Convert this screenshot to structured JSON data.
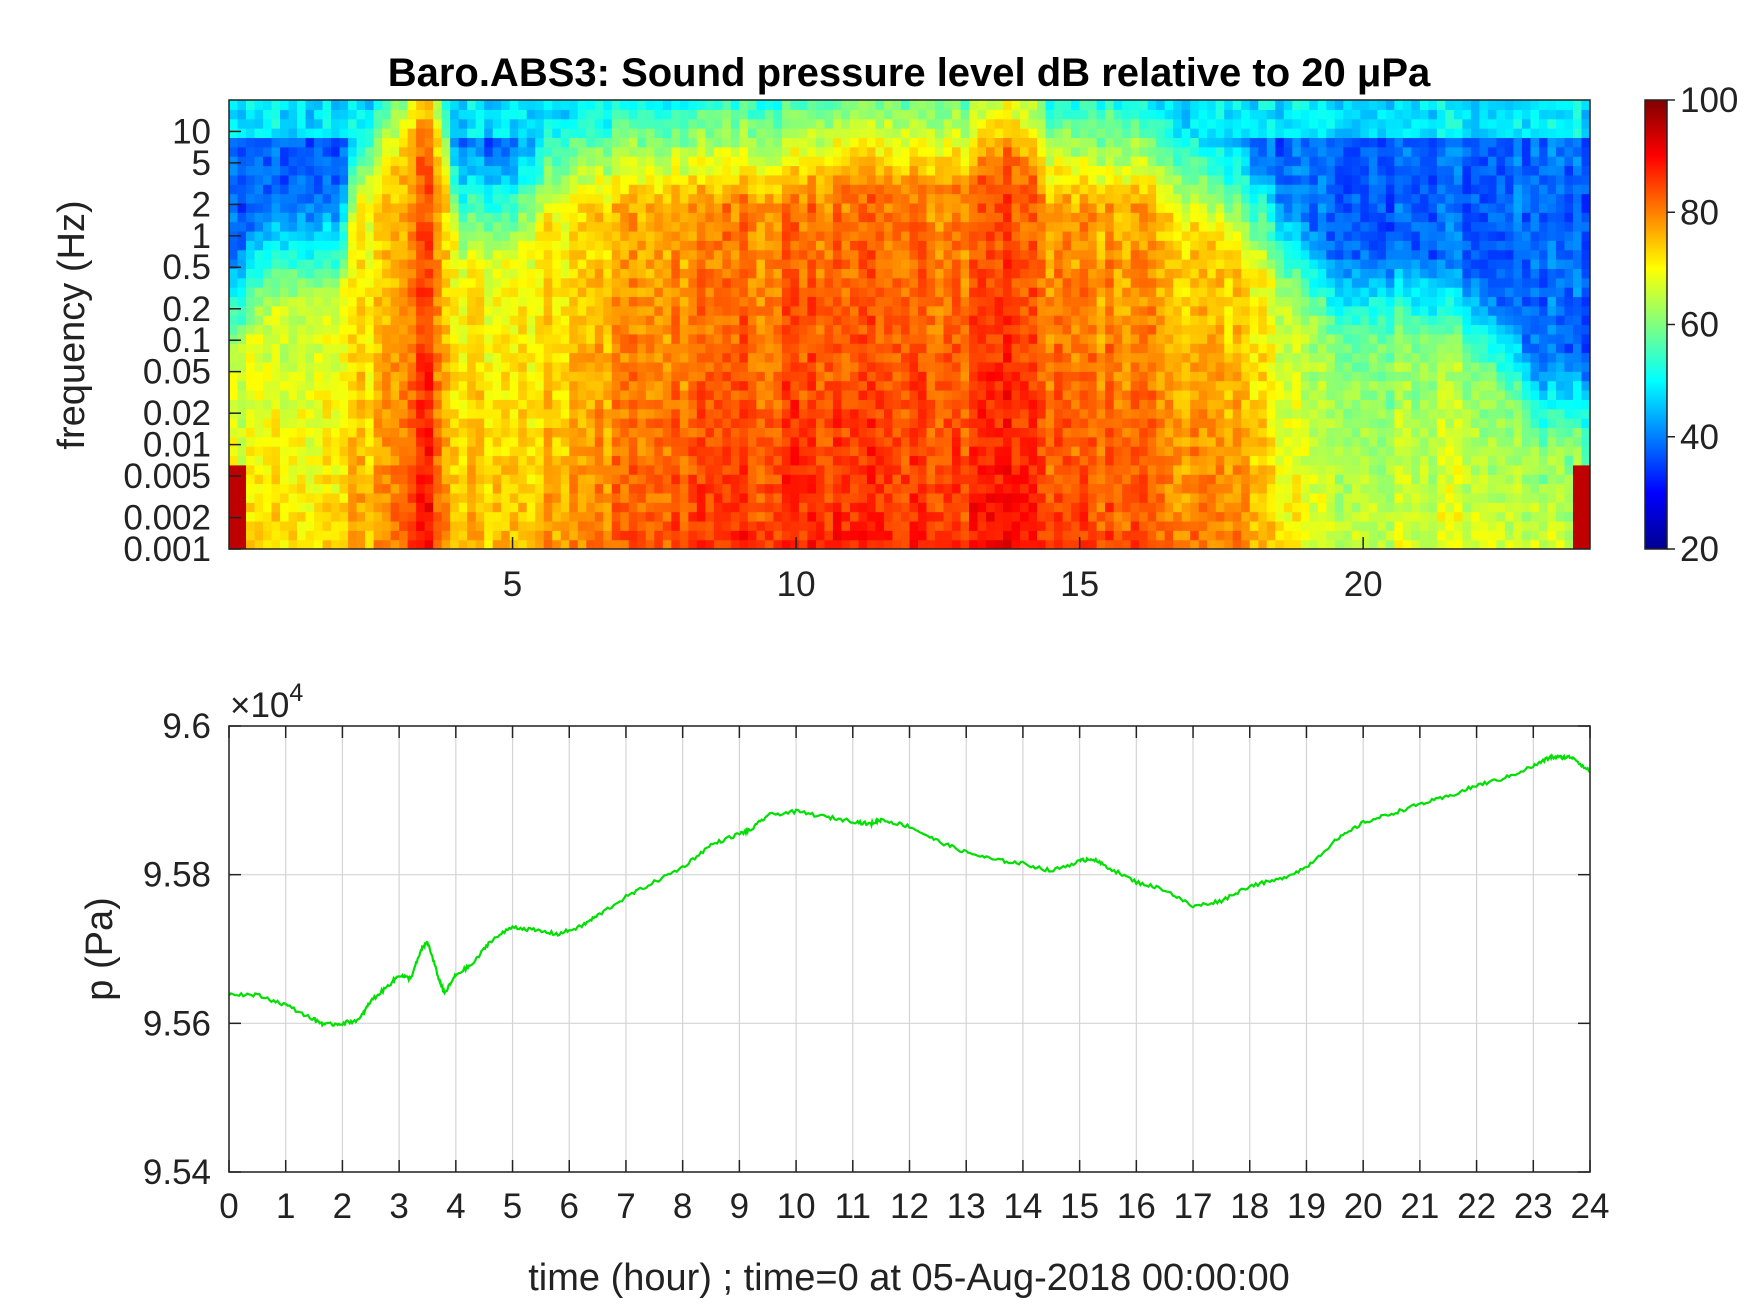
{
  "chart_data": [
    {
      "type": "heatmap",
      "title": "Baro.ABS3: Sound pressure level dB relative to 20 μPa",
      "ylabel": "frequency (Hz)",
      "xlabel": "",
      "x_ticks": [
        5,
        10,
        15,
        20
      ],
      "x_range": [
        0,
        24
      ],
      "y_scale": "log",
      "y_range": [
        0.001,
        20
      ],
      "y_ticks": [
        0.001,
        0.002,
        0.005,
        0.01,
        0.02,
        0.05,
        0.1,
        0.2,
        0.5,
        1,
        2,
        5,
        10
      ],
      "colorbar": {
        "min": 20,
        "max": 100,
        "ticks": [
          20,
          40,
          60,
          80,
          100
        ],
        "colormap": "jet"
      },
      "profile": {
        "hours": [
          0,
          1,
          2,
          3,
          3.5,
          4,
          5,
          6,
          7,
          8,
          9,
          10,
          11,
          12,
          13,
          13.8,
          14.5,
          15,
          16,
          17,
          18,
          18.8,
          19.5,
          20,
          21,
          22,
          23,
          24
        ],
        "level_db": [
          66,
          66,
          67,
          74,
          82,
          70,
          69,
          71,
          75,
          77,
          79,
          80,
          80,
          80,
          80,
          83,
          78,
          77,
          77,
          74,
          71,
          63,
          60,
          60,
          61,
          62,
          60,
          60
        ],
        "broadband_cutoff_hz": [
          0.05,
          0.2,
          0.2,
          5,
          8,
          0.5,
          0.5,
          2,
          2,
          2,
          2,
          2,
          3,
          3,
          3,
          5,
          2,
          2,
          2,
          1,
          0.5,
          0.2,
          0.1,
          0.1,
          0.1,
          0.05,
          0.01,
          0.01
        ]
      }
    },
    {
      "type": "line",
      "ylabel": "p (Pa)",
      "xlabel": "time (hour) ; time=0 at 05-Aug-2018 00:00:00",
      "x_range": [
        0,
        24
      ],
      "ylim": [
        95400,
        96000
      ],
      "y_ticks": [
        95400,
        95600,
        95800,
        96000
      ],
      "y_tick_labels": [
        "9.54",
        "9.56",
        "9.58",
        "9.6"
      ],
      "exponent_label": "×10",
      "exponent_power": "4",
      "grid": true,
      "color": "#00e000",
      "series": [
        {
          "x": [
            0,
            0.5,
            1,
            1.5,
            1.7,
            2,
            2.3,
            2.5,
            2.8,
            3,
            3.2,
            3.4,
            3.5,
            3.7,
            3.8,
            4,
            4.3,
            4.6,
            5,
            5.4,
            5.8,
            6.2,
            6.5,
            7,
            7.5,
            8,
            8.5,
            9,
            9.2,
            9.5,
            10,
            10.5,
            11,
            11.3,
            11.5,
            12,
            12.5,
            13,
            13.5,
            14,
            14.5,
            15,
            15.2,
            15.5,
            16,
            16.5,
            17,
            17.5,
            18,
            18.5,
            19,
            19.5,
            20,
            20.5,
            21,
            21.5,
            22,
            22.5,
            23,
            23.3,
            23.5,
            23.7,
            24
          ],
          "y": [
            95640,
            95638,
            95625,
            95605,
            95598,
            95600,
            95605,
            95630,
            95650,
            95665,
            95660,
            95700,
            95710,
            95660,
            95640,
            95665,
            95680,
            95710,
            95730,
            95725,
            95720,
            95730,
            95745,
            95770,
            95790,
            95810,
            95840,
            95855,
            95860,
            95880,
            95885,
            95878,
            95872,
            95868,
            95874,
            95865,
            95845,
            95830,
            95820,
            95815,
            95805,
            95818,
            95822,
            95810,
            95790,
            95780,
            95757,
            95765,
            95785,
            95793,
            95810,
            95845,
            95870,
            95882,
            95895,
            95905,
            95920,
            95930,
            95946,
            95958,
            95958,
            95958,
            95938
          ]
        }
      ]
    }
  ]
}
